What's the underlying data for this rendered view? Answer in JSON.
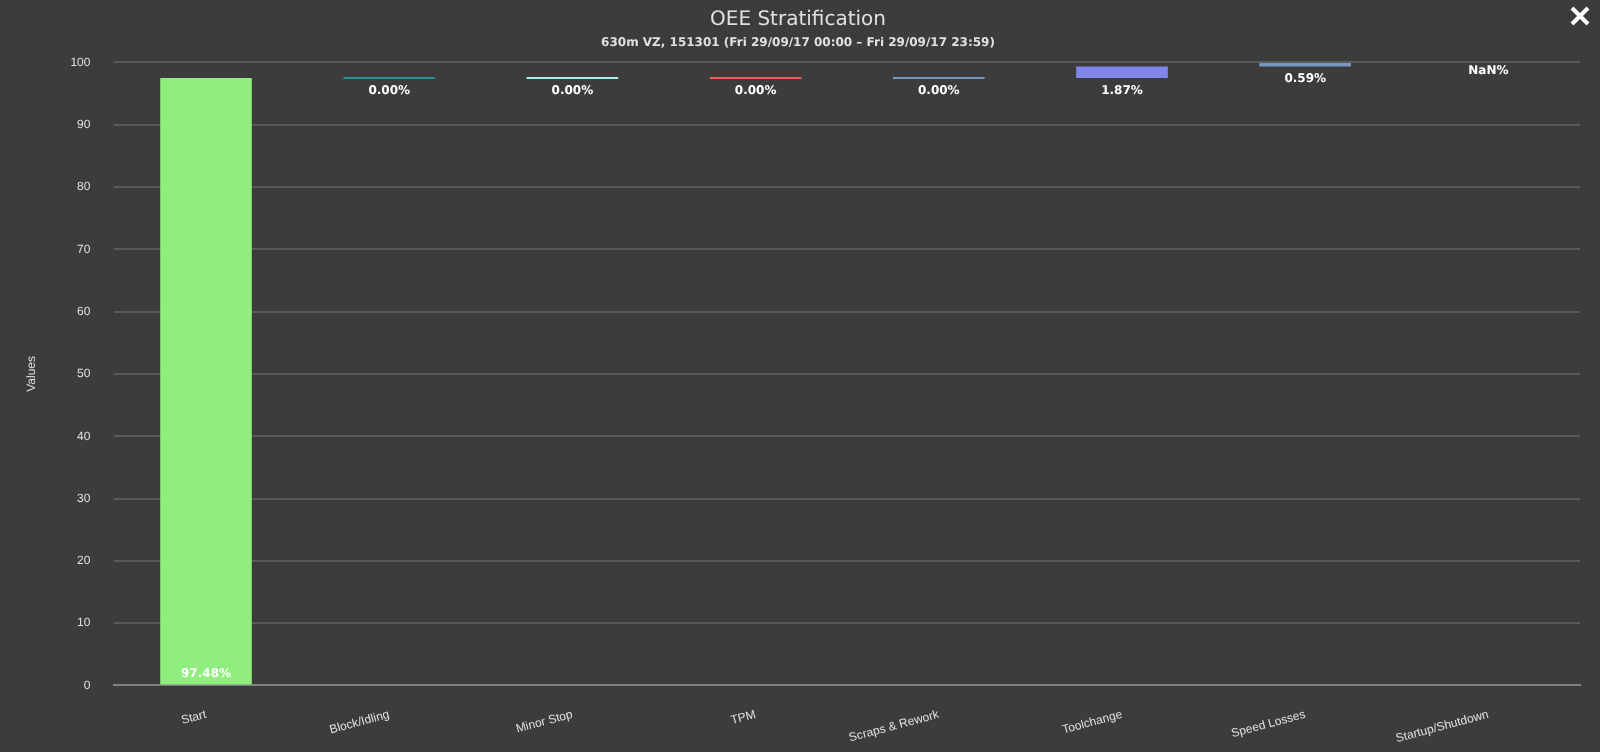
{
  "chart_data": {
    "type": "bar",
    "title": "OEE Stratification",
    "subtitle": "630m VZ, 151301 (Fri 29/09/17 00:00 – Fri 29/09/17 23:59)",
    "ylabel": "Values",
    "categories": [
      "Start",
      "Block/Idling",
      "Minor Stop",
      "TPM",
      "Scraps & Rework",
      "Toolchange",
      "Speed Losses",
      "Startup/Shutdown"
    ],
    "values": [
      97.48,
      0,
      0,
      0,
      0,
      1.87,
      0.59,
      null
    ],
    "base": [
      0,
      97.48,
      97.48,
      97.48,
      97.48,
      97.48,
      99.35,
      null
    ],
    "colors": [
      "#90ee7e",
      "#2b908f",
      "#aaeeee",
      "#f45b5b",
      "#7798bf",
      "#8085e9",
      "#7798bf",
      "#eeaaee"
    ],
    "value_labels": [
      "97.48%",
      "0.00%",
      "0.00%",
      "0.00%",
      "0.00%",
      "1.87%",
      "0.59%",
      "NaN%"
    ],
    "ylim": [
      0,
      100
    ],
    "yticks": [
      0,
      10,
      20,
      30,
      40,
      50,
      60,
      70,
      80,
      90,
      100
    ],
    "grid": "y",
    "legend": false
  }
}
